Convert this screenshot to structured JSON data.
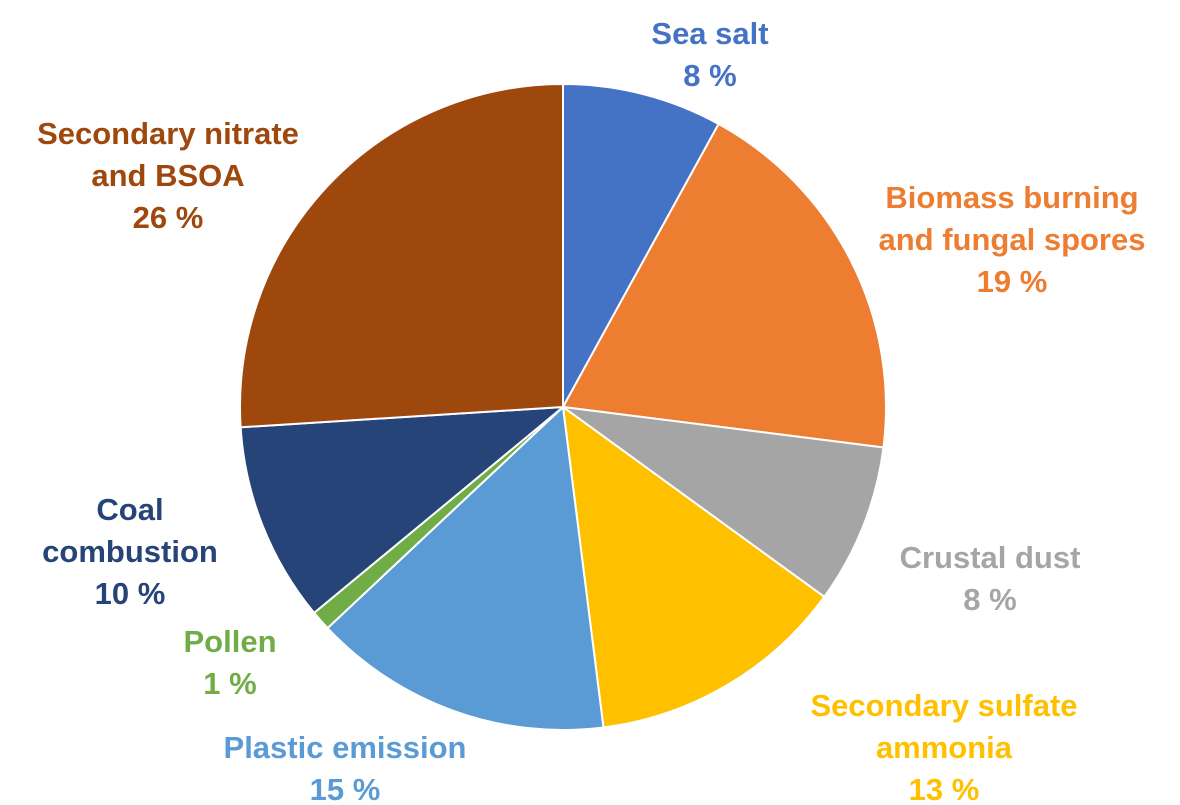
{
  "chart_data": {
    "type": "pie",
    "slices": [
      {
        "label_lines": [
          "Sea salt"
        ],
        "value": 8,
        "value_label": "8 %",
        "color": "#4472C4"
      },
      {
        "label_lines": [
          "Biomass burning",
          "and fungal spores"
        ],
        "value": 19,
        "value_label": "19 %",
        "color": "#ED7D31"
      },
      {
        "label_lines": [
          "Crustal dust"
        ],
        "value": 8,
        "value_label": "8 %",
        "color": "#A5A5A5"
      },
      {
        "label_lines": [
          "Secondary sulfate",
          "ammonia"
        ],
        "value": 13,
        "value_label": "13 %",
        "color": "#FFC000"
      },
      {
        "label_lines": [
          "Plastic emission"
        ],
        "value": 15,
        "value_label": "15 %",
        "color": "#5B9BD5"
      },
      {
        "label_lines": [
          "Pollen"
        ],
        "value": 1,
        "value_label": "1 %",
        "color": "#70AD47"
      },
      {
        "label_lines": [
          "Coal",
          "combustion"
        ],
        "value": 10,
        "value_label": "10 %",
        "color": "#264478"
      },
      {
        "label_lines": [
          "Secondary nitrate",
          "and BSOA"
        ],
        "value": 26,
        "value_label": "26 %",
        "color": "#9E480E"
      }
    ],
    "start_angle": "12 o'clock",
    "direction": "clockwise",
    "legend": "none",
    "data_labels": "outside slices, colored like the slice"
  }
}
